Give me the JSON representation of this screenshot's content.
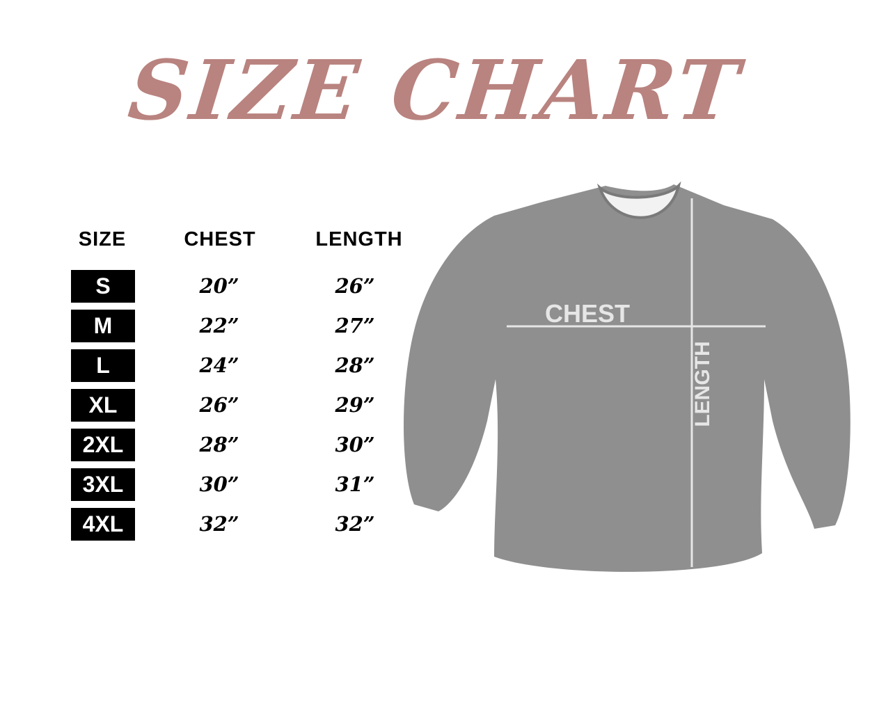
{
  "title": "SIZE CHART",
  "title_color": "#b9837f",
  "headers": {
    "size": "SIZE",
    "chest": "CHEST",
    "length": "LENGTH"
  },
  "rows": [
    {
      "size": "S",
      "chest": "20”",
      "length": "26”"
    },
    {
      "size": "M",
      "chest": "22”",
      "length": "27”"
    },
    {
      "size": "L",
      "chest": "24”",
      "length": "28”"
    },
    {
      "size": "XL",
      "chest": "26”",
      "length": "29”"
    },
    {
      "size": "2XL",
      "chest": "28”",
      "length": "30”"
    },
    {
      "size": "3XL",
      "chest": "30”",
      "length": "31”"
    },
    {
      "size": "4XL",
      "chest": "32”",
      "length": "32”"
    }
  ],
  "diagram": {
    "chest_label": "CHEST",
    "length_label": "LENGTH",
    "garment_color": "#8f8f8f"
  }
}
